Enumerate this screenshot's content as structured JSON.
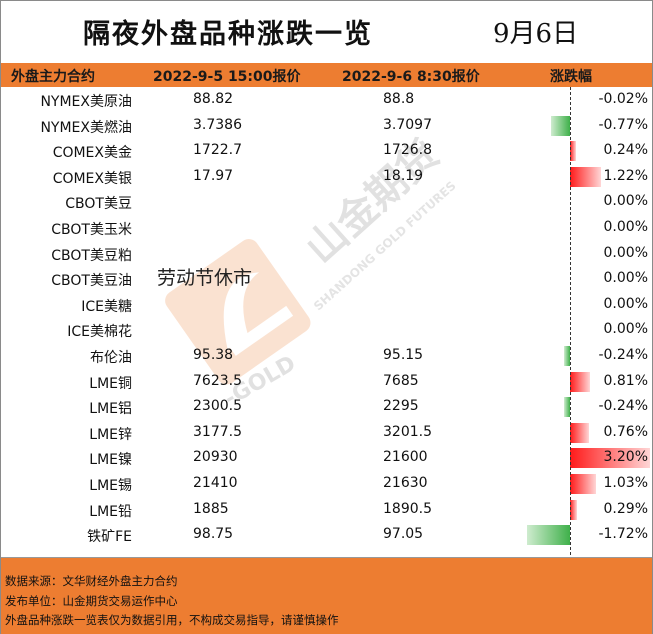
{
  "title": "隔夜外盘品种涨跌一览",
  "date": "9月6日",
  "header": {
    "name": "外盘主力合约",
    "price1": "2022-9-5 15:00报价",
    "price2": "2022-9-6 8:30报价",
    "change": "涨跌幅"
  },
  "holiday_note": "劳动节休市",
  "rows": [
    {
      "name": "NYMEX美原油",
      "p1": "88.82",
      "p2": "88.8",
      "pct": "-0.02%",
      "value": -0.02
    },
    {
      "name": "NYMEX美燃油",
      "p1": "3.7386",
      "p2": "3.7097",
      "pct": "-0.77%",
      "value": -0.77
    },
    {
      "name": "COMEX美金",
      "p1": "1722.7",
      "p2": "1726.8",
      "pct": "0.24%",
      "value": 0.24
    },
    {
      "name": "COMEX美银",
      "p1": "17.97",
      "p2": "18.19",
      "pct": "1.22%",
      "value": 1.22
    },
    {
      "name": "CBOT美豆",
      "p1": "",
      "p2": "",
      "pct": "0.00%",
      "value": 0
    },
    {
      "name": "CBOT美玉米",
      "p1": "",
      "p2": "",
      "pct": "0.00%",
      "value": 0
    },
    {
      "name": "CBOT美豆粕",
      "p1": "",
      "p2": "",
      "pct": "0.00%",
      "value": 0
    },
    {
      "name": "CBOT美豆油",
      "p1": "",
      "p2": "",
      "pct": "0.00%",
      "value": 0
    },
    {
      "name": "ICE美糖",
      "p1": "",
      "p2": "",
      "pct": "0.00%",
      "value": 0
    },
    {
      "name": "ICE美棉花",
      "p1": "",
      "p2": "",
      "pct": "0.00%",
      "value": 0
    },
    {
      "name": "布伦油",
      "p1": "95.38",
      "p2": "95.15",
      "pct": "-0.24%",
      "value": -0.24
    },
    {
      "name": "LME铜",
      "p1": "7623.5",
      "p2": "7685",
      "pct": "0.81%",
      "value": 0.81
    },
    {
      "name": "LME铝",
      "p1": "2300.5",
      "p2": "2295",
      "pct": "-0.24%",
      "value": -0.24
    },
    {
      "name": "LME锌",
      "p1": "3177.5",
      "p2": "3201.5",
      "pct": "0.76%",
      "value": 0.76
    },
    {
      "name": "LME镍",
      "p1": "20930",
      "p2": "21600",
      "pct": "3.20%",
      "value": 3.2
    },
    {
      "name": "LME锡",
      "p1": "21410",
      "p2": "21630",
      "pct": "1.03%",
      "value": 1.03
    },
    {
      "name": "LME铅",
      "p1": "1885",
      "p2": "1890.5",
      "pct": "0.29%",
      "value": 0.29
    },
    {
      "name": "铁矿FE",
      "p1": "98.75",
      "p2": "97.05",
      "pct": "-1.72%",
      "value": -1.72
    }
  ],
  "watermark": {
    "cn": "山金期货",
    "en": "SHANDONG GOLD FUTURES",
    "logo": "-GOLD"
  },
  "footer": {
    "line1": "数据来源：文华财经外盘主力合约",
    "line2": "发布单位：山金期货交易运作中心",
    "line3": "外盘品种涨跌一览表仅为数据引用，不构成交易指导，请谨慎操作"
  },
  "colors": {
    "header_bg": "#ed7d31",
    "up": "#ff1a1a",
    "down": "#3fb04a"
  }
}
